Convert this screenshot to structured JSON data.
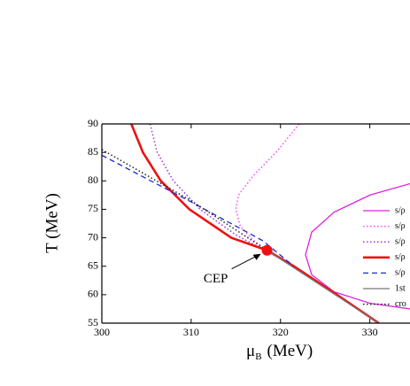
{
  "chart_data": {
    "type": "line",
    "x_label": {
      "symbol": "μ",
      "subscript": "B",
      "unit": "(MeV)"
    },
    "y_label": "T (MeV)",
    "xlim": [
      300,
      334.5
    ],
    "ylim": [
      55,
      90
    ],
    "xticks": [
      300,
      310,
      320,
      330
    ],
    "yticks": [
      55,
      60,
      65,
      70,
      75,
      80,
      85,
      90
    ],
    "series": [
      {
        "name": "s/ρ",
        "color": "#e020e0",
        "style": "solid",
        "linewidth": 1.3,
        "x": [
          334.5,
          330,
          326,
          323.5,
          322.8,
          323.5,
          326,
          330,
          334.5
        ],
        "values": [
          79.5,
          77.5,
          74.5,
          71,
          67,
          63.5,
          60.5,
          58.5,
          57.5
        ]
      },
      {
        "name": "s/ρ",
        "color": "#ff44ff",
        "style": "dotted",
        "linewidth": 1.5,
        "x": [
          322.1,
          319.5,
          317,
          315.3,
          315,
          315.5,
          317,
          319,
          321.5
        ],
        "values": [
          90,
          85,
          81,
          77.5,
          75,
          72,
          69.5,
          67.3,
          65
        ]
      },
      {
        "name": "s/ρ",
        "color": "#9a30d8",
        "style": "dotted",
        "linewidth": 1.5,
        "x": [
          305.4,
          306.2,
          308,
          311,
          315,
          318,
          321.5
        ],
        "values": [
          90,
          85,
          80,
          75,
          70.5,
          68,
          65
        ]
      },
      {
        "name": "s/ρ",
        "color": "#ee1111",
        "style": "solid",
        "linewidth": 2.6,
        "x": [
          303.3,
          304.6,
          306.6,
          309.8,
          314.5,
          318.5,
          321.5,
          326.3,
          331
        ],
        "values": [
          90,
          85,
          80,
          75,
          70,
          67.8,
          65,
          60,
          55
        ]
      },
      {
        "name": "s/ρ",
        "color": "#1a2ad8",
        "style": "dashed",
        "linewidth": 1.3,
        "x": [
          300,
          310,
          318,
          321.5
        ],
        "values": [
          84.5,
          76.3,
          69.5,
          65
        ]
      },
      {
        "name": "1st",
        "color": "#777777",
        "style": "solid",
        "linewidth": 1.3,
        "x": [
          318.5,
          331
        ],
        "values": [
          67.8,
          55
        ]
      },
      {
        "name": "cro",
        "color": "#222222",
        "style": "dotted",
        "linewidth": 1.5,
        "x": [
          300,
          310,
          318.5
        ],
        "values": [
          85.5,
          76.5,
          67.8
        ]
      }
    ],
    "cep": {
      "label": "CEP",
      "x": 318.5,
      "y": 67.8,
      "color": "#ee1111"
    }
  }
}
